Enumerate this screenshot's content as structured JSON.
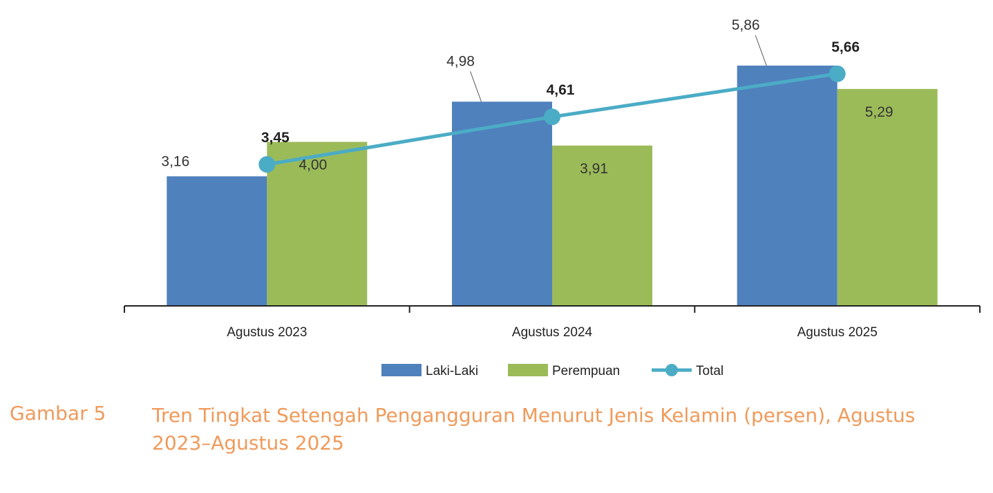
{
  "chart_data": {
    "type": "bar",
    "categories": [
      "Agustus 2023",
      "Agustus 2024",
      "Agustus 2025"
    ],
    "series": [
      {
        "name": "Laki-Laki",
        "type": "bar",
        "color": "#4f81bd",
        "values": [
          3.16,
          4.98,
          5.86
        ],
        "labels": [
          "3,16",
          "4,98",
          "5,86"
        ]
      },
      {
        "name": "Perempuan",
        "type": "bar",
        "color": "#9bbb59",
        "values": [
          4.0,
          3.91,
          5.29
        ],
        "labels": [
          "4,00",
          "3,91",
          "5,29"
        ]
      },
      {
        "name": "Total",
        "type": "line",
        "color": "#4bacc6",
        "values": [
          3.45,
          4.61,
          5.66
        ],
        "labels": [
          "3,45",
          "4,61",
          "5,66"
        ]
      }
    ],
    "ylim": [
      0,
      6.5
    ],
    "grid": false,
    "legend": "bottom"
  },
  "caption": {
    "label": "Gambar 5",
    "title": "Tren Tingkat Setengah Pengangguran Menurut Jenis Kelamin (persen), Agustus 2023–Agustus 2025"
  }
}
